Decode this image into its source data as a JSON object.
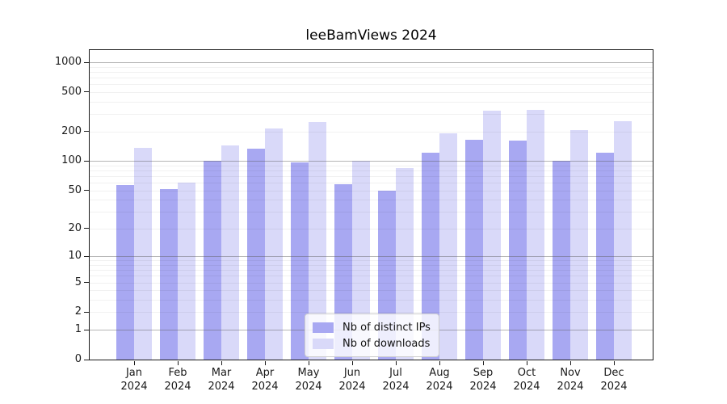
{
  "chart_data": {
    "type": "bar",
    "title": "leeBamViews 2024",
    "xlabel": "",
    "ylabel": "",
    "yscale": "log1p",
    "ylim": [
      0,
      1000
    ],
    "grid": "on",
    "legend_position": "lower center",
    "categories": [
      "Jan",
      "Feb",
      "Mar",
      "Apr",
      "May",
      "Jun",
      "Jul",
      "Aug",
      "Sep",
      "Oct",
      "Nov",
      "Dec"
    ],
    "year": "2024",
    "yticks": [
      0,
      1,
      2,
      5,
      10,
      20,
      50,
      100,
      200,
      500,
      1000
    ],
    "major_gridlines": [
      1,
      10,
      100,
      1000
    ],
    "series": [
      {
        "name": "Nb of distinct IPs",
        "color": "#a8a8f2",
        "values": [
          57,
          52,
          100,
          133,
          97,
          58,
          50,
          122,
          165,
          162,
          100,
          121
        ]
      },
      {
        "name": "Nb of downloads",
        "color": "#d9d9f9",
        "values": [
          135,
          60,
          145,
          215,
          250,
          100,
          84,
          192,
          325,
          330,
          207,
          252
        ]
      }
    ]
  }
}
